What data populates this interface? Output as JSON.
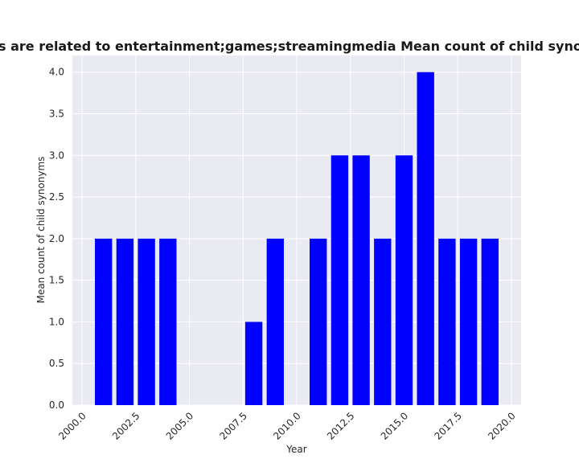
{
  "chart_data": {
    "type": "bar",
    "title": "...s are related to entertainment;games;streamingmedia Mean count of child synonyms in privacy...",
    "title_visible": "s are related to entertainment;games;streamingmedia Mean count of child synonyms in privac",
    "xlabel": "Year",
    "ylabel": "Mean count of child synonyms",
    "xlim": [
      1999.55,
      2020.45
    ],
    "ylim": [
      0,
      4.2
    ],
    "grid": true,
    "x_ticks": [
      2000.0,
      2002.5,
      2005.0,
      2007.5,
      2010.0,
      2012.5,
      2015.0,
      2017.5,
      2020.0
    ],
    "x_tick_labels": [
      "2000.0",
      "2002.5",
      "2005.0",
      "2007.5",
      "2010.0",
      "2012.5",
      "2015.0",
      "2017.5",
      "2020.0"
    ],
    "y_ticks": [
      0.0,
      0.5,
      1.0,
      1.5,
      2.0,
      2.5,
      3.0,
      3.5,
      4.0
    ],
    "y_tick_labels": [
      "0.0",
      "0.5",
      "1.0",
      "1.5",
      "2.0",
      "2.5",
      "3.0",
      "3.5",
      "4.0"
    ],
    "bar_color": "#0000ff",
    "background_color": "#eaeaf2",
    "grid_color": "#ffffff",
    "x": [
      2001,
      2002,
      2003,
      2004,
      2008,
      2009,
      2011,
      2012,
      2013,
      2014,
      2015,
      2016,
      2017,
      2018,
      2019
    ],
    "values": [
      2,
      2,
      2,
      2,
      1,
      2,
      2,
      3,
      3,
      2,
      3,
      4,
      2,
      2,
      2
    ]
  }
}
